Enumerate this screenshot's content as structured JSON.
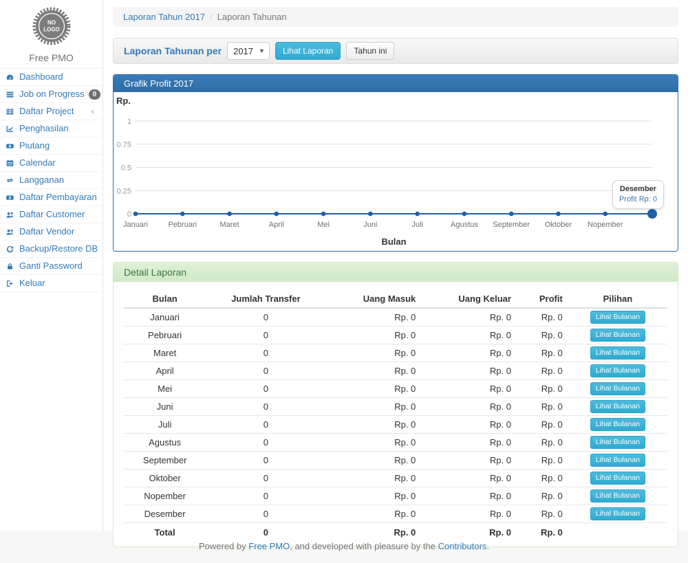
{
  "colors": {
    "accent": "#337ab7",
    "panel_primary_header": "#2e6da4",
    "info_button": "#31abd2",
    "success_header_bg": "#dff0d8",
    "success_header_text": "#3c763d",
    "line_color": "#1d60a5",
    "grid_color": "#e0e0e0",
    "badge_bg": "#6f6f6f"
  },
  "sidebar": {
    "logo": {
      "line1": "NO",
      "line2": "LOGO"
    },
    "brand": "Free PMO",
    "items": [
      {
        "label": "Dashboard",
        "icon": "dashboard-icon"
      },
      {
        "label": "Job on Progress",
        "icon": "tasks-icon",
        "badge": "0"
      },
      {
        "label": "Daftar Project",
        "icon": "table-icon",
        "chevron": "‹"
      },
      {
        "label": "Penghasilan",
        "icon": "line-chart-icon"
      },
      {
        "label": "Piutang",
        "icon": "money-icon"
      },
      {
        "label": "Calendar",
        "icon": "calendar-icon"
      },
      {
        "label": "Langganan",
        "icon": "retweet-icon"
      },
      {
        "label": "Daftar Pembayaran",
        "icon": "money-icon"
      },
      {
        "label": "Daftar Customer",
        "icon": "users-icon"
      },
      {
        "label": "Daftar Vendor",
        "icon": "users-icon"
      },
      {
        "label": "Backup/Restore DB",
        "icon": "refresh-icon"
      },
      {
        "label": "Ganti Password",
        "icon": "lock-icon"
      },
      {
        "label": "Keluar",
        "icon": "sign-out-icon"
      }
    ]
  },
  "breadcrumb": {
    "link": "Laporan Tahun 2017",
    "separator": "/",
    "current": "Laporan Tahunan"
  },
  "filter": {
    "label": "Laporan Tahunan per",
    "year": "2017",
    "view_button": "Lihat Laporan",
    "this_year_button": "Tahun ini"
  },
  "panels": {
    "chart_title": "Grafik Profit 2017",
    "detail_title": "Detail Laporan"
  },
  "chart_data": {
    "type": "line",
    "title": "Grafik Profit 2017",
    "ylabel": "Rp.",
    "xlabel": "Bulan",
    "categories": [
      "Januari",
      "Pebruari",
      "Maret",
      "April",
      "Mei",
      "Juni",
      "Juli",
      "Agustus",
      "September",
      "Oktober",
      "Nopember",
      "Desember"
    ],
    "series": [
      {
        "name": "Profit",
        "values": [
          0,
          0,
          0,
          0,
          0,
          0,
          0,
          0,
          0,
          0,
          0,
          0
        ]
      }
    ],
    "y_ticks": [
      0,
      0.25,
      0.5,
      0.75,
      1
    ],
    "ylim": [
      0,
      1
    ],
    "grid": true,
    "legend": "none",
    "last_x_label_hidden": true,
    "emphasized_point": "Desember",
    "tooltip": {
      "title": "Desember",
      "value": "Profit Rp: 0"
    }
  },
  "detail_table": {
    "headers": [
      "Bulan",
      "Jumlah Transfer",
      "Uang Masuk",
      "Uang Keluar",
      "Profit",
      "Pilihan"
    ],
    "rows": [
      {
        "bulan": "Januari",
        "jumlah_transfer": "0",
        "uang_masuk": "Rp. 0",
        "uang_keluar": "Rp. 0",
        "profit": "Rp. 0",
        "action": "Lihat Bulanan"
      },
      {
        "bulan": "Pebruari",
        "jumlah_transfer": "0",
        "uang_masuk": "Rp. 0",
        "uang_keluar": "Rp. 0",
        "profit": "Rp. 0",
        "action": "Lihat Bulanan"
      },
      {
        "bulan": "Maret",
        "jumlah_transfer": "0",
        "uang_masuk": "Rp. 0",
        "uang_keluar": "Rp. 0",
        "profit": "Rp. 0",
        "action": "Lihat Bulanan"
      },
      {
        "bulan": "April",
        "jumlah_transfer": "0",
        "uang_masuk": "Rp. 0",
        "uang_keluar": "Rp. 0",
        "profit": "Rp. 0",
        "action": "Lihat Bulanan"
      },
      {
        "bulan": "Mei",
        "jumlah_transfer": "0",
        "uang_masuk": "Rp. 0",
        "uang_keluar": "Rp. 0",
        "profit": "Rp. 0",
        "action": "Lihat Bulanan"
      },
      {
        "bulan": "Juni",
        "jumlah_transfer": "0",
        "uang_masuk": "Rp. 0",
        "uang_keluar": "Rp. 0",
        "profit": "Rp. 0",
        "action": "Lihat Bulanan"
      },
      {
        "bulan": "Juli",
        "jumlah_transfer": "0",
        "uang_masuk": "Rp. 0",
        "uang_keluar": "Rp. 0",
        "profit": "Rp. 0",
        "action": "Lihat Bulanan"
      },
      {
        "bulan": "Agustus",
        "jumlah_transfer": "0",
        "uang_masuk": "Rp. 0",
        "uang_keluar": "Rp. 0",
        "profit": "Rp. 0",
        "action": "Lihat Bulanan"
      },
      {
        "bulan": "September",
        "jumlah_transfer": "0",
        "uang_masuk": "Rp. 0",
        "uang_keluar": "Rp. 0",
        "profit": "Rp. 0",
        "action": "Lihat Bulanan"
      },
      {
        "bulan": "Oktober",
        "jumlah_transfer": "0",
        "uang_masuk": "Rp. 0",
        "uang_keluar": "Rp. 0",
        "profit": "Rp. 0",
        "action": "Lihat Bulanan"
      },
      {
        "bulan": "Nopember",
        "jumlah_transfer": "0",
        "uang_masuk": "Rp. 0",
        "uang_keluar": "Rp. 0",
        "profit": "Rp. 0",
        "action": "Lihat Bulanan"
      },
      {
        "bulan": "Desember",
        "jumlah_transfer": "0",
        "uang_masuk": "Rp. 0",
        "uang_keluar": "Rp. 0",
        "profit": "Rp. 0",
        "action": "Lihat Bulanan"
      }
    ],
    "total_row": {
      "bulan": "Total",
      "jumlah_transfer": "0",
      "uang_masuk": "Rp. 0",
      "uang_keluar": "Rp. 0",
      "profit": "Rp. 0"
    }
  },
  "footer": {
    "prefix": "Powered by ",
    "link1": "Free PMO",
    "middle": ", and developed with pleasure by the ",
    "link2": "Contributors."
  }
}
